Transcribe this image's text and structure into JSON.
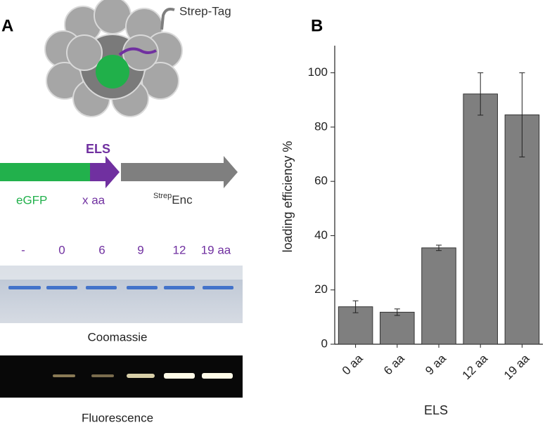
{
  "panel_a": {
    "label": "A",
    "tag_label": "Strep-Tag",
    "els_label": "ELS",
    "gene_labels": [
      "eGFP",
      "x aa"
    ],
    "enc_label": {
      "superscript": "Strep",
      "text": "Enc"
    },
    "lanes": [
      "-",
      "0",
      "6",
      "9",
      "12",
      "19 aa"
    ],
    "gel_labels": [
      "Coomassie",
      "Fluorescence"
    ]
  },
  "chart_data": {
    "type": "bar",
    "panel_label": "B",
    "x_label": "ELS",
    "y_label": "loading efficiency  %",
    "categories": [
      "0 aa",
      "6 aa",
      "9 aa",
      "12 aa",
      "19 aa"
    ],
    "values": [
      13.8,
      11.8,
      35.5,
      92.2,
      84.5
    ],
    "errors": [
      2.2,
      1.2,
      1.0,
      7.8,
      15.5
    ],
    "color": "#7f7f7f",
    "ylim": [
      0,
      110
    ],
    "yticks": [
      0,
      20,
      40,
      60,
      80,
      100
    ]
  }
}
